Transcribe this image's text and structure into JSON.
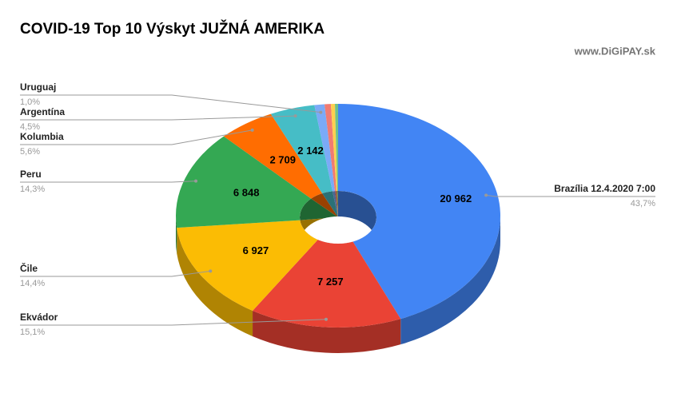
{
  "chart_data": {
    "type": "donut3d",
    "title": "COVID-19 Top 10 Výskyt JUŽNÁ AMERIKA",
    "subtitle": "www.DiGiPAY.sk",
    "categories": [
      "Brazília 12.4.2020  7:00",
      "Ekvádor",
      "Čile",
      "Peru",
      "Kolumbia",
      "Argentína",
      "Uruguaj",
      null,
      null,
      null
    ],
    "values": [
      20962,
      7257,
      6927,
      6848,
      2709,
      2142,
      480,
      300,
      190,
      150
    ],
    "value_labels": [
      "20 962",
      "7 257",
      "6 927",
      "6 848",
      "2 709",
      "2 142",
      null,
      null,
      null,
      null
    ],
    "percent_labels": [
      "43,7%",
      "15,1%",
      "14,4%",
      "14,3%",
      "5,6%",
      "4,5%",
      "1,0%",
      null,
      null,
      null
    ],
    "colors": [
      "#4285f4",
      "#ea4335",
      "#fbbc04",
      "#34a853",
      "#ff6d01",
      "#46bdc6",
      "#7baaf7",
      "#f07b72",
      "#fcd04f",
      "#71c287"
    ]
  }
}
